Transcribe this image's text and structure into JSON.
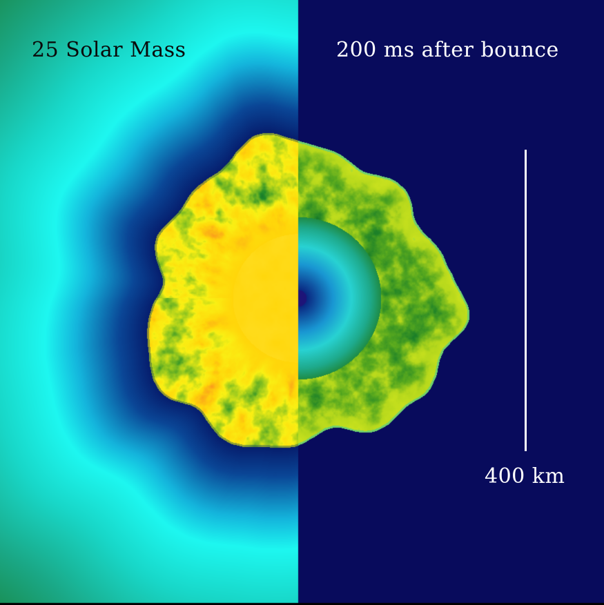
{
  "labels": {
    "mass": "25 Solar Mass",
    "time": "200 ms after bounce",
    "scale": "400 km"
  },
  "colors": {
    "left_text": "#0a0a0a",
    "right_text": "#ffffff",
    "scale_bar": "#ffffff",
    "right_background": "#080b5c",
    "cyan_ring": "#1df7f0",
    "teal_field": "#1aa886",
    "core_yellow": "#ffd60a",
    "hot_red": "#ee3a1c",
    "plume_green": "#1f8a2a",
    "entropy_lime": "#b6d81c"
  }
}
